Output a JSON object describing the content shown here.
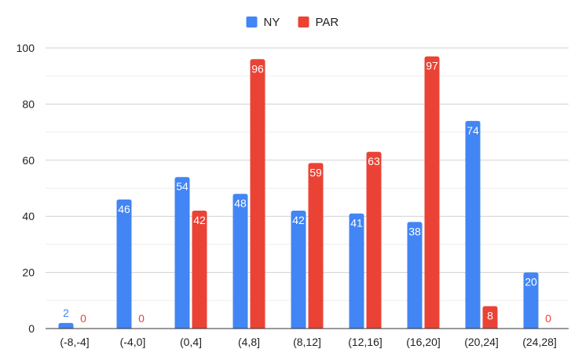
{
  "chart_data": {
    "type": "bar",
    "title": "",
    "xlabel": "",
    "ylabel": "",
    "categories": [
      "(-8,-4]",
      "(-4,0]",
      "(0,4]",
      "(4,8]",
      "(8,12]",
      "(12,16]",
      "(16,20]",
      "(20,24]",
      "(24,28]"
    ],
    "series": [
      {
        "name": "NY",
        "color": "#4285F4",
        "values": [
          2,
          46,
          54,
          48,
          42,
          41,
          38,
          74,
          20
        ]
      },
      {
        "name": "PAR",
        "color": "#EA4335",
        "values": [
          0,
          0,
          42,
          96,
          59,
          63,
          97,
          8,
          0
        ]
      }
    ],
    "ylim": [
      0,
      100
    ],
    "yticks": [
      0,
      20,
      40,
      60,
      80,
      100
    ],
    "grid": true,
    "legend_position": "top-center"
  }
}
